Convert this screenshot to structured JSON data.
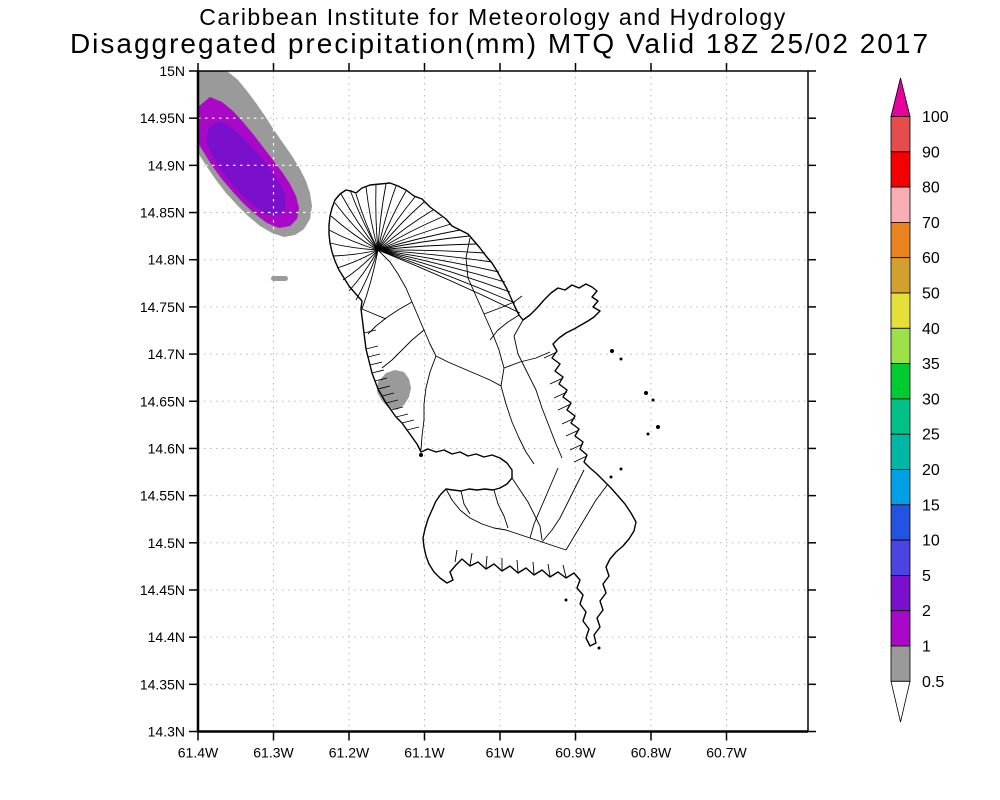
{
  "titles": {
    "line1": "Caribbean Institute for Meteorology and Hydrology",
    "line2": "Disaggregated precipitation(mm) MTQ Valid 18Z 25/02 2017"
  },
  "chart_data": {
    "type": "map-contour",
    "title": "Caribbean Institute for Meteorology and Hydrology",
    "subtitle": "Disaggregated precipitation(mm) MTQ Valid 18Z 25/02 2017",
    "region": "MTQ",
    "valid_time": "18Z 25/02 2017",
    "unit": "mm",
    "grid": true,
    "axis_ranges": {
      "lon_left_w": 61.4,
      "lon_right_w": 60.592,
      "lat_top_n": 15.0,
      "lat_bottom_n": 14.3
    },
    "x_axis": {
      "ticks": [
        {
          "label": "61.4W",
          "lon": 61.4
        },
        {
          "label": "61.3W",
          "lon": 61.3
        },
        {
          "label": "61.2W",
          "lon": 61.2
        },
        {
          "label": "61.1W",
          "lon": 61.1
        },
        {
          "label": "61W",
          "lon": 61.0
        },
        {
          "label": "60.9W",
          "lon": 60.9
        },
        {
          "label": "60.8W",
          "lon": 60.8
        },
        {
          "label": "60.7W",
          "lon": 60.7
        }
      ]
    },
    "y_axis": {
      "ticks": [
        {
          "label": "15N",
          "lat": 15.0
        },
        {
          "label": "14.95N",
          "lat": 14.95
        },
        {
          "label": "14.9N",
          "lat": 14.9
        },
        {
          "label": "14.85N",
          "lat": 14.85
        },
        {
          "label": "14.8N",
          "lat": 14.8
        },
        {
          "label": "14.75N",
          "lat": 14.75
        },
        {
          "label": "14.7N",
          "lat": 14.7
        },
        {
          "label": "14.65N",
          "lat": 14.65
        },
        {
          "label": "14.6N",
          "lat": 14.6
        },
        {
          "label": "14.55N",
          "lat": 14.55
        },
        {
          "label": "14.5N",
          "lat": 14.5
        },
        {
          "label": "14.45N",
          "lat": 14.45
        },
        {
          "label": "14.4N",
          "lat": 14.4
        },
        {
          "label": "14.35N",
          "lat": 14.35
        },
        {
          "label": "14.3N",
          "lat": 14.3
        }
      ]
    },
    "colorbar": {
      "unit": "mm",
      "levels_top_to_bottom": [
        "100",
        "90",
        "80",
        "70",
        "60",
        "50",
        "40",
        "35",
        "30",
        "25",
        "20",
        "15",
        "10",
        "5",
        "2",
        "1",
        "0.5"
      ],
      "segment_colors_top_to_bottom": [
        "#e74c4c",
        "#f40000",
        "#f9aeb6",
        "#e9831f",
        "#d2a02e",
        "#e5df3a",
        "#9ce04a",
        "#00cb30",
        "#00c287",
        "#00b6a5",
        "#00a0e6",
        "#2353e0",
        "#4b43e2",
        "#7a10cc",
        "#aa08c8",
        "#9a9a9a"
      ],
      "over_arrow_color": "#e6009e",
      "under_arrow_color": "#ffffff"
    },
    "precip_features": [
      {
        "name": "northwest-offshore-cell",
        "approx_location": "near 61.35W 14.90N (northwest of Martinique)",
        "max_band_mm": "2-5",
        "contours": [
          {
            "level_mm": "0.5-1",
            "color": "#9a9a9a"
          },
          {
            "level_mm": "1-2",
            "color": "#aa08c8"
          },
          {
            "level_mm": "2-5",
            "color": "#7a10cc"
          }
        ]
      },
      {
        "name": "west-coast-cell",
        "approx_location": "near 61.14W 14.66N (west coast of Martinique)",
        "max_band_mm": "0.5-1",
        "contours": [
          {
            "level_mm": "0.5-1",
            "color": "#9a9a9a"
          }
        ]
      },
      {
        "name": "small-offshore-dash",
        "approx_location": "near 61.29W 14.78N",
        "max_band_mm": "0.5-1",
        "contours": [
          {
            "level_mm": "0.5-1",
            "color": "#9a9a9a"
          }
        ]
      }
    ]
  }
}
